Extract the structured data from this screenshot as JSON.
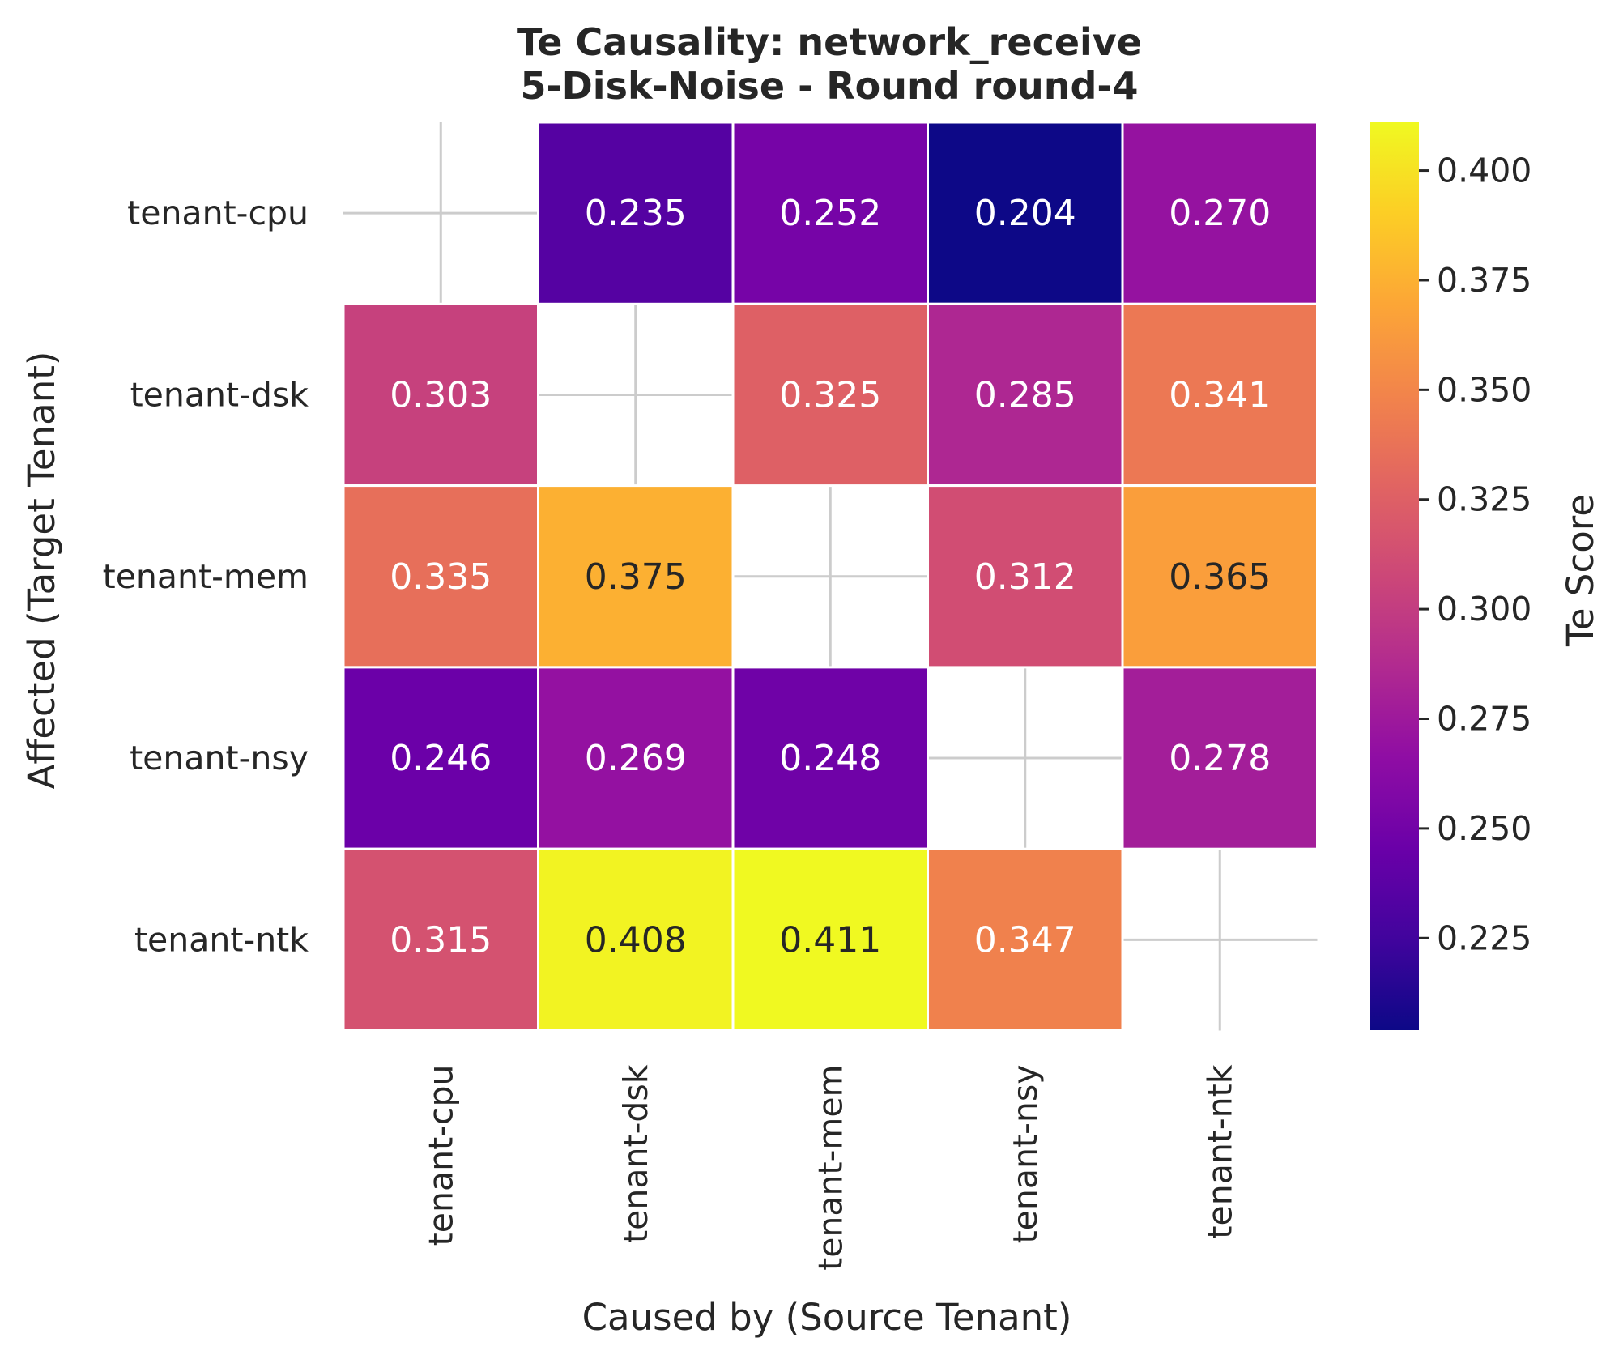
{
  "chart_data": {
    "type": "heatmap",
    "title_lines": [
      "Te Causality: network_receive",
      "5-Disk-Noise - Round round-4"
    ],
    "xlabel": "Caused by (Source Tenant)",
    "ylabel": "Affected (Target Tenant)",
    "x_categories": [
      "tenant-cpu",
      "tenant-dsk",
      "tenant-mem",
      "tenant-nsy",
      "tenant-ntk"
    ],
    "y_categories": [
      "tenant-cpu",
      "tenant-dsk",
      "tenant-mem",
      "tenant-nsy",
      "tenant-ntk"
    ],
    "values": [
      [
        null,
        0.235,
        0.252,
        0.204,
        0.27
      ],
      [
        0.303,
        null,
        0.325,
        0.285,
        0.341
      ],
      [
        0.335,
        0.375,
        null,
        0.312,
        0.365
      ],
      [
        0.246,
        0.269,
        0.248,
        null,
        0.278
      ],
      [
        0.315,
        0.408,
        0.411,
        0.347,
        null
      ]
    ],
    "value_labels": [
      [
        "",
        "0.235",
        "0.252",
        "0.204",
        "0.270"
      ],
      [
        "0.303",
        "",
        "0.325",
        "0.285",
        "0.341"
      ],
      [
        "0.335",
        "0.375",
        "",
        "0.312",
        "0.365"
      ],
      [
        "0.246",
        "0.269",
        "0.248",
        "",
        "0.278"
      ],
      [
        "0.315",
        "0.408",
        "0.411",
        "0.347",
        ""
      ]
    ],
    "colormap": "plasma",
    "vmin": 0.204,
    "vmax": 0.411,
    "colorbar": {
      "label": "Te Score",
      "ticks": [
        0.225,
        0.25,
        0.275,
        0.3,
        0.325,
        0.35,
        0.375,
        0.4
      ],
      "tick_labels": [
        "0.225",
        "0.250",
        "0.275",
        "0.300",
        "0.325",
        "0.350",
        "0.375",
        "0.400"
      ]
    },
    "grid": true,
    "legend": "colorbar-right",
    "label_color_dark": "#262626",
    "label_color_light": "#ffffff"
  }
}
